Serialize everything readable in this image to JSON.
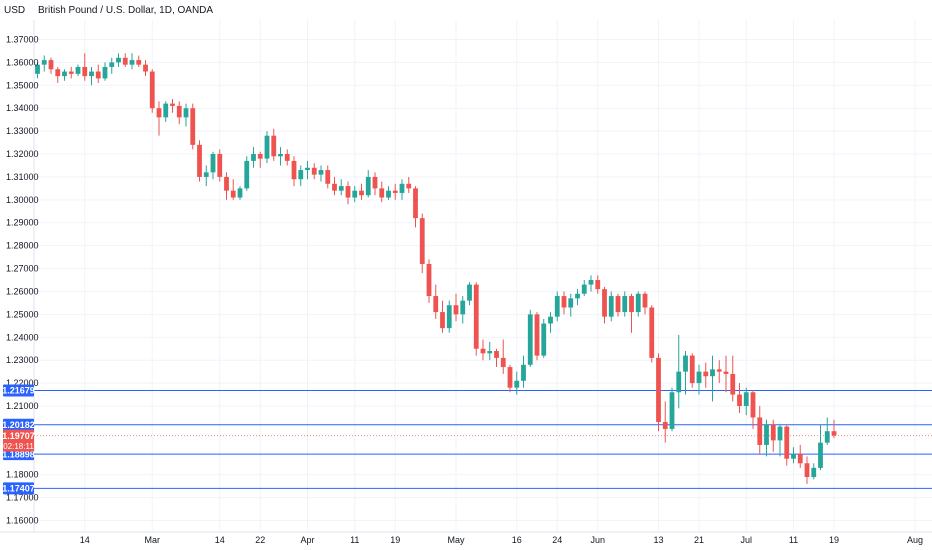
{
  "header": {
    "currency": "USD",
    "title": "British Pound / U.S. Dollar, 1D, OANDA"
  },
  "chart_data": {
    "type": "candlestick",
    "title": "British Pound / U.S. Dollar, 1D, OANDA",
    "ylabel": "USD",
    "ylim": [
      1.155,
      1.3785
    ],
    "y_ticks": [
      "1.37000",
      "1.36000",
      "1.35000",
      "1.34000",
      "1.33000",
      "1.32000",
      "1.31000",
      "1.30000",
      "1.29000",
      "1.28000",
      "1.27000",
      "1.26000",
      "1.25000",
      "1.24000",
      "1.23000",
      "1.22000",
      "1.21000",
      "1.18000",
      "1.17000",
      "1.16000"
    ],
    "x_ticks": [
      {
        "label": "14",
        "index": 7
      },
      {
        "label": "Mar",
        "index": 17
      },
      {
        "label": "14",
        "index": 27
      },
      {
        "label": "22",
        "index": 33
      },
      {
        "label": "Apr",
        "index": 40
      },
      {
        "label": "11",
        "index": 47
      },
      {
        "label": "19",
        "index": 53
      },
      {
        "label": "May",
        "index": 62
      },
      {
        "label": "16",
        "index": 71
      },
      {
        "label": "24",
        "index": 77
      },
      {
        "label": "Jun",
        "index": 83
      },
      {
        "label": "13",
        "index": 92
      },
      {
        "label": "21",
        "index": 98
      },
      {
        "label": "Jul",
        "index": 105
      },
      {
        "label": "11",
        "index": 112
      },
      {
        "label": "19",
        "index": 118
      },
      {
        "label": "Aug",
        "index": 130
      }
    ],
    "levels": [
      {
        "label": "1.21679",
        "value": 1.21679
      },
      {
        "label": "1.20182",
        "value": 1.20182
      },
      {
        "label": "1.18898",
        "value": 1.18898
      },
      {
        "label": "1.17407",
        "value": 1.17407
      }
    ],
    "current_price": {
      "label": "1.19707",
      "value": 1.19707,
      "countdown": "02:18:11"
    },
    "up_color": "#26a69a",
    "down_color": "#ef5350",
    "level_color": "#2962ff",
    "candles": [
      [
        1.355,
        1.36,
        1.353,
        1.359
      ],
      [
        1.359,
        1.363,
        1.356,
        1.361
      ],
      [
        1.361,
        1.362,
        1.355,
        1.357
      ],
      [
        1.357,
        1.358,
        1.351,
        1.354
      ],
      [
        1.354,
        1.357,
        1.352,
        1.356
      ],
      [
        1.356,
        1.358,
        1.353,
        1.355
      ],
      [
        1.355,
        1.359,
        1.354,
        1.358
      ],
      [
        1.358,
        1.364,
        1.352,
        1.354
      ],
      [
        1.354,
        1.358,
        1.35,
        1.356
      ],
      [
        1.356,
        1.359,
        1.351,
        1.353
      ],
      [
        1.353,
        1.36,
        1.352,
        1.358
      ],
      [
        1.358,
        1.362,
        1.355,
        1.36
      ],
      [
        1.36,
        1.364,
        1.358,
        1.362
      ],
      [
        1.362,
        1.364,
        1.358,
        1.359
      ],
      [
        1.359,
        1.364,
        1.357,
        1.361
      ],
      [
        1.361,
        1.363,
        1.358,
        1.359
      ],
      [
        1.359,
        1.361,
        1.354,
        1.356
      ],
      [
        1.356,
        1.357,
        1.338,
        1.34
      ],
      [
        1.34,
        1.343,
        1.328,
        1.336
      ],
      [
        1.336,
        1.343,
        1.334,
        1.342
      ],
      [
        1.342,
        1.344,
        1.338,
        1.341
      ],
      [
        1.341,
        1.343,
        1.333,
        1.336
      ],
      [
        1.336,
        1.342,
        1.332,
        1.34
      ],
      [
        1.34,
        1.342,
        1.322,
        1.324
      ],
      [
        1.324,
        1.326,
        1.308,
        1.31
      ],
      [
        1.31,
        1.315,
        1.306,
        1.312
      ],
      [
        1.312,
        1.321,
        1.309,
        1.32
      ],
      [
        1.32,
        1.322,
        1.308,
        1.31
      ],
      [
        1.31,
        1.312,
        1.3,
        1.304
      ],
      [
        1.304,
        1.309,
        1.3,
        1.301
      ],
      [
        1.301,
        1.306,
        1.3,
        1.305
      ],
      [
        1.305,
        1.319,
        1.304,
        1.317
      ],
      [
        1.317,
        1.323,
        1.314,
        1.32
      ],
      [
        1.32,
        1.321,
        1.314,
        1.318
      ],
      [
        1.318,
        1.33,
        1.316,
        1.328
      ],
      [
        1.328,
        1.331,
        1.317,
        1.319
      ],
      [
        1.319,
        1.323,
        1.315,
        1.32
      ],
      [
        1.32,
        1.322,
        1.315,
        1.317
      ],
      [
        1.317,
        1.319,
        1.306,
        1.309
      ],
      [
        1.309,
        1.315,
        1.306,
        1.313
      ],
      [
        1.313,
        1.317,
        1.309,
        1.314
      ],
      [
        1.314,
        1.316,
        1.309,
        1.311
      ],
      [
        1.311,
        1.315,
        1.308,
        1.313
      ],
      [
        1.313,
        1.315,
        1.305,
        1.307
      ],
      [
        1.307,
        1.31,
        1.302,
        1.304
      ],
      [
        1.304,
        1.309,
        1.302,
        1.306
      ],
      [
        1.306,
        1.308,
        1.298,
        1.301
      ],
      [
        1.301,
        1.306,
        1.299,
        1.304
      ],
      [
        1.304,
        1.307,
        1.3,
        1.302
      ],
      [
        1.302,
        1.313,
        1.301,
        1.31
      ],
      [
        1.31,
        1.312,
        1.302,
        1.305
      ],
      [
        1.305,
        1.308,
        1.299,
        1.301
      ],
      [
        1.301,
        1.306,
        1.3,
        1.304
      ],
      [
        1.304,
        1.307,
        1.3,
        1.303
      ],
      [
        1.303,
        1.309,
        1.3,
        1.307
      ],
      [
        1.307,
        1.31,
        1.303,
        1.305
      ],
      [
        1.305,
        1.306,
        1.288,
        1.292
      ],
      [
        1.292,
        1.294,
        1.268,
        1.272
      ],
      [
        1.272,
        1.274,
        1.255,
        1.258
      ],
      [
        1.258,
        1.263,
        1.248,
        1.251
      ],
      [
        1.251,
        1.256,
        1.242,
        1.244
      ],
      [
        1.244,
        1.256,
        1.242,
        1.254
      ],
      [
        1.254,
        1.259,
        1.247,
        1.25
      ],
      [
        1.25,
        1.258,
        1.246,
        1.256
      ],
      [
        1.256,
        1.264,
        1.254,
        1.263
      ],
      [
        1.263,
        1.264,
        1.232,
        1.235
      ],
      [
        1.235,
        1.239,
        1.23,
        1.233
      ],
      [
        1.233,
        1.238,
        1.23,
        1.234
      ],
      [
        1.234,
        1.235,
        1.227,
        1.231
      ],
      [
        1.231,
        1.239,
        1.224,
        1.227
      ],
      [
        1.227,
        1.228,
        1.216,
        1.218
      ],
      [
        1.218,
        1.225,
        1.215,
        1.221
      ],
      [
        1.221,
        1.232,
        1.218,
        1.228
      ],
      [
        1.228,
        1.252,
        1.227,
        1.25
      ],
      [
        1.25,
        1.251,
        1.23,
        1.232
      ],
      [
        1.232,
        1.248,
        1.231,
        1.246
      ],
      [
        1.246,
        1.251,
        1.242,
        1.249
      ],
      [
        1.249,
        1.26,
        1.247,
        1.258
      ],
      [
        1.258,
        1.26,
        1.25,
        1.253
      ],
      [
        1.253,
        1.259,
        1.249,
        1.257
      ],
      [
        1.257,
        1.261,
        1.254,
        1.259
      ],
      [
        1.259,
        1.265,
        1.258,
        1.263
      ],
      [
        1.263,
        1.267,
        1.26,
        1.265
      ],
      [
        1.265,
        1.267,
        1.259,
        1.261
      ],
      [
        1.261,
        1.262,
        1.246,
        1.249
      ],
      [
        1.249,
        1.26,
        1.247,
        1.258
      ],
      [
        1.258,
        1.259,
        1.249,
        1.251
      ],
      [
        1.251,
        1.26,
        1.249,
        1.258
      ],
      [
        1.258,
        1.259,
        1.242,
        1.251
      ],
      [
        1.251,
        1.26,
        1.249,
        1.259
      ],
      [
        1.259,
        1.26,
        1.25,
        1.253
      ],
      [
        1.253,
        1.254,
        1.229,
        1.231
      ],
      [
        1.231,
        1.233,
        1.199,
        1.203
      ],
      [
        1.203,
        1.212,
        1.194,
        1.2
      ],
      [
        1.2,
        1.218,
        1.199,
        1.216
      ],
      [
        1.216,
        1.241,
        1.209,
        1.225
      ],
      [
        1.225,
        1.234,
        1.215,
        1.232
      ],
      [
        1.232,
        1.233,
        1.218,
        1.22
      ],
      [
        1.22,
        1.228,
        1.215,
        1.225
      ],
      [
        1.225,
        1.229,
        1.218,
        1.223
      ],
      [
        1.223,
        1.232,
        1.212,
        1.226
      ],
      [
        1.226,
        1.23,
        1.22,
        1.225
      ],
      [
        1.225,
        1.232,
        1.216,
        1.224
      ],
      [
        1.224,
        1.232,
        1.212,
        1.215
      ],
      [
        1.215,
        1.22,
        1.207,
        1.21
      ],
      [
        1.21,
        1.218,
        1.206,
        1.216
      ],
      [
        1.216,
        1.217,
        1.2,
        1.205
      ],
      [
        1.205,
        1.21,
        1.189,
        1.193
      ],
      [
        1.193,
        1.204,
        1.188,
        1.202
      ],
      [
        1.202,
        1.204,
        1.19,
        1.195
      ],
      [
        1.195,
        1.202,
        1.188,
        1.201
      ],
      [
        1.201,
        1.202,
        1.184,
        1.187
      ],
      [
        1.187,
        1.192,
        1.185,
        1.189
      ],
      [
        1.189,
        1.193,
        1.183,
        1.185
      ],
      [
        1.185,
        1.188,
        1.176,
        1.179
      ],
      [
        1.179,
        1.185,
        1.178,
        1.183
      ],
      [
        1.183,
        1.202,
        1.182,
        1.194
      ],
      [
        1.194,
        1.205,
        1.193,
        1.199
      ],
      [
        1.199,
        1.204,
        1.196,
        1.1971
      ]
    ]
  }
}
